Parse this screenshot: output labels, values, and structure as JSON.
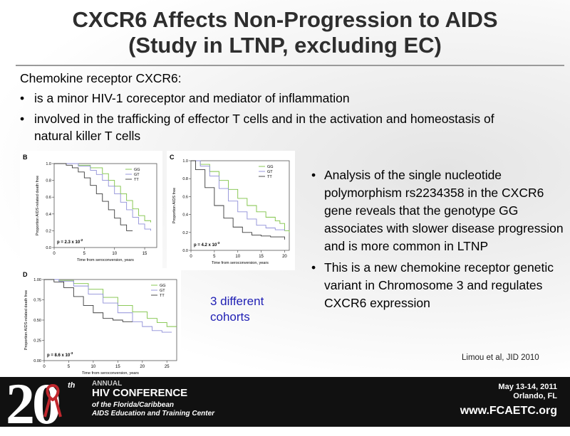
{
  "slide": {
    "title_line1": "CXCR6 Affects Non-Progression to AIDS",
    "title_line2": "(Study in LTNP, excluding EC)",
    "intro_heading": "Chemokine receptor CXCR6:",
    "intro_bullets": [
      "is a minor HIV-1 coreceptor and mediator of inflammation",
      "involved in the trafficking of effector T cells and in the activation and homeostasis of natural killer T cells"
    ],
    "findings": [
      "Analysis of the single nucleotide polymorphism rs2234358 in the CXCR6 gene reveals that the genotype GG associates with slower disease progression and is more common in LTNP",
      "This is a new chemokine receptor genetic variant in Chromosome 3 and regulates CXCR6 expression"
    ],
    "cohorts_label": "3 different cohorts",
    "citation": "Limou et al, JID 2010"
  },
  "footer": {
    "logo_number": "20",
    "logo_suffix": "th",
    "annual": "ANNUAL",
    "conference": "HIV CONFERENCE",
    "org_line1": "of the Florida/Caribbean",
    "org_line2": "AIDS Education and Training Center",
    "date": "May 13-14, 2011",
    "place": "Orlando, FL",
    "url": "www.FCAETC.org"
  },
  "colors": {
    "GG": "#7dc243",
    "GT": "#8f8fd8",
    "TT": "#3a3a3a",
    "title": "#2e2e2e",
    "cohorts_text": "#1f1fb4",
    "footer_bg": "#111111"
  },
  "chart_data": [
    {
      "type": "line",
      "panel": "B",
      "xlabel": "Time from seroconversion, years",
      "ylabel": "Proportion AIDS-related death free",
      "xlim": [
        0,
        17
      ],
      "ylim": [
        0,
        1.0
      ],
      "xticks": [
        0,
        5,
        10,
        15
      ],
      "yticks": [
        0.0,
        0.2,
        0.4,
        0.6,
        0.8,
        1.0
      ],
      "annotation": "p = 2.3 x 10",
      "annotation_exp": "-2",
      "legend_position": "top-right",
      "series": [
        {
          "name": "GG",
          "x": [
            0,
            2,
            4,
            6,
            8,
            9,
            10,
            11,
            12,
            13,
            14,
            15,
            16
          ],
          "y": [
            1.0,
            1.0,
            0.98,
            0.95,
            0.88,
            0.8,
            0.73,
            0.64,
            0.56,
            0.46,
            0.38,
            0.32,
            0.3
          ]
        },
        {
          "name": "GT",
          "x": [
            0,
            2,
            4,
            6,
            7,
            8,
            9,
            10,
            11,
            12,
            13,
            14,
            15,
            16
          ],
          "y": [
            1.0,
            1.0,
            0.97,
            0.92,
            0.87,
            0.8,
            0.73,
            0.64,
            0.54,
            0.45,
            0.36,
            0.28,
            0.22,
            0.2
          ]
        },
        {
          "name": "TT",
          "x": [
            0,
            2,
            3,
            4,
            5,
            6,
            7,
            8,
            9,
            10,
            11,
            12,
            13
          ],
          "y": [
            1.0,
            0.98,
            0.95,
            0.9,
            0.83,
            0.74,
            0.64,
            0.55,
            0.45,
            0.35,
            0.27,
            0.2,
            0.2
          ]
        }
      ]
    },
    {
      "type": "line",
      "panel": "C",
      "xlabel": "Time from seroconversion, years",
      "ylabel": "Proportion AIDS free",
      "xlim": [
        0,
        21
      ],
      "ylim": [
        0,
        1.0
      ],
      "xticks": [
        0,
        5,
        10,
        15,
        20
      ],
      "yticks": [
        0.0,
        0.2,
        0.4,
        0.6,
        0.8,
        1.0
      ],
      "annotation": "p = 4.2 x 10",
      "annotation_exp": "-3",
      "legend_position": "top-right",
      "series": [
        {
          "name": "GG",
          "x": [
            0,
            2,
            4,
            6,
            8,
            10,
            12,
            14,
            16,
            18,
            19,
            20,
            21
          ],
          "y": [
            1.0,
            0.96,
            0.88,
            0.78,
            0.68,
            0.58,
            0.5,
            0.43,
            0.37,
            0.33,
            0.3,
            0.22,
            0.2
          ]
        },
        {
          "name": "GT",
          "x": [
            0,
            2,
            4,
            6,
            8,
            10,
            12,
            14,
            16,
            18,
            20
          ],
          "y": [
            1.0,
            0.94,
            0.83,
            0.69,
            0.55,
            0.43,
            0.35,
            0.28,
            0.25,
            0.23,
            0.22
          ]
        },
        {
          "name": "TT",
          "x": [
            0,
            1,
            3,
            5,
            7,
            9,
            11,
            13,
            15,
            17,
            19,
            20
          ],
          "y": [
            1.0,
            0.9,
            0.7,
            0.5,
            0.36,
            0.26,
            0.2,
            0.17,
            0.16,
            0.15,
            0.15,
            0.12
          ]
        }
      ]
    },
    {
      "type": "line",
      "panel": "D",
      "xlabel": "Time from seroconversion, years",
      "ylabel": "Proportion AIDS-related death free",
      "xlim": [
        0,
        27
      ],
      "ylim": [
        0,
        1.0
      ],
      "xticks": [
        0,
        5,
        10,
        15,
        20,
        25
      ],
      "yticks": [
        0.0,
        0.25,
        0.5,
        0.75,
        1.0
      ],
      "annotation": "p = 8.6 x 10",
      "annotation_exp": "-3",
      "legend_position": "top-right",
      "series": [
        {
          "name": "GG",
          "x": [
            0,
            3,
            6,
            9,
            12,
            15,
            18,
            21,
            23,
            25,
            27
          ],
          "y": [
            1.0,
            0.99,
            0.95,
            0.88,
            0.78,
            0.68,
            0.6,
            0.52,
            0.47,
            0.42,
            0.42
          ]
        },
        {
          "name": "GT",
          "x": [
            0,
            3,
            6,
            9,
            12,
            15,
            18,
            20,
            22,
            24,
            26
          ],
          "y": [
            1.0,
            0.98,
            0.92,
            0.82,
            0.71,
            0.59,
            0.48,
            0.42,
            0.37,
            0.35,
            0.35
          ]
        },
        {
          "name": "TT",
          "x": [
            0,
            2,
            4,
            6,
            8,
            10,
            12,
            14,
            16,
            18
          ],
          "y": [
            1.0,
            0.97,
            0.9,
            0.79,
            0.68,
            0.59,
            0.52,
            0.5,
            0.48,
            0.48
          ]
        }
      ]
    }
  ]
}
